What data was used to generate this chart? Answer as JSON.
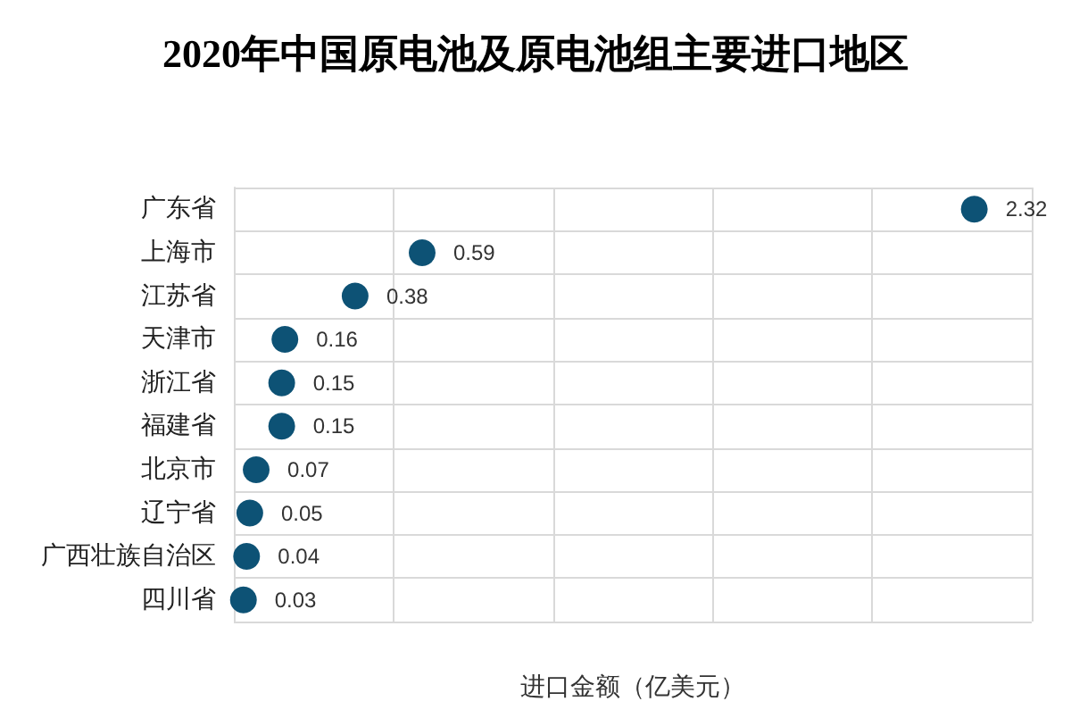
{
  "chart_data": {
    "type": "scatter",
    "orientation": "horizontal",
    "title": "2020年中国原电池及原电池组主要进口地区",
    "xlabel": "进口金额（亿美元）",
    "categories": [
      "广东省",
      "上海市",
      "江苏省",
      "天津市",
      "浙江省",
      "福建省",
      "北京市",
      "辽宁省",
      "广西壮族自治区",
      "四川省"
    ],
    "values": [
      2.32,
      0.59,
      0.38,
      0.16,
      0.15,
      0.15,
      0.07,
      0.05,
      0.04,
      0.03
    ],
    "color": "#0d5275",
    "data_labels": true,
    "marker": "circle",
    "grid": true,
    "tick_labels": "y",
    "xlim": [
      0,
      2.5
    ],
    "xticks": [
      {
        "value": 0,
        "label": null
      },
      {
        "value": 0.5,
        "label": null
      },
      {
        "value": 1,
        "label": null
      },
      {
        "value": 1.5,
        "label": null
      },
      {
        "value": 2,
        "label": null
      },
      {
        "value": 2.5,
        "label": null
      }
    ]
  }
}
